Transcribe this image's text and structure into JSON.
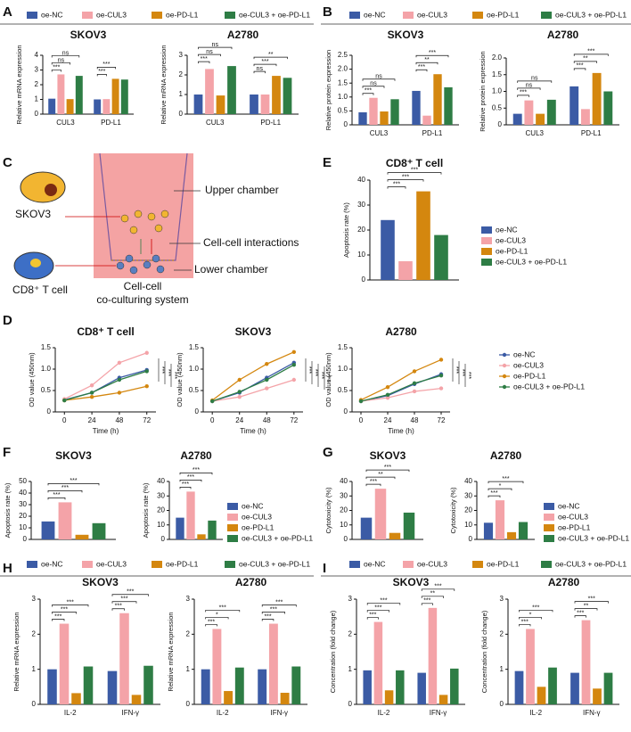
{
  "panel_labels": [
    "A",
    "B",
    "C",
    "D",
    "E",
    "F",
    "G",
    "H",
    "I"
  ],
  "diagram": {
    "labels": [
      "Upper chamber",
      "SKOV3",
      "Cell-cell interactions",
      "CD8⁺ T cell",
      "Lower chamber",
      "Cell-cell",
      "co-culturing system"
    ]
  },
  "chart_data": [
    {
      "type": "bar",
      "title": "SKOV3",
      "ylabel": "Relative mRNA expression",
      "categories": [
        "CUL3",
        "PD-L1"
      ],
      "ylim": [
        0,
        4
      ],
      "yticks": [
        0,
        1,
        2,
        3,
        4
      ],
      "series": [
        {
          "name": "oe-NC",
          "color": "#3b5ba5",
          "values": [
            1.05,
            1.0
          ]
        },
        {
          "name": "oe-CUL3",
          "color": "#f4a3a8",
          "values": [
            2.7,
            1.02
          ]
        },
        {
          "name": "oe-PD-L1",
          "color": "#d4870f",
          "values": [
            1.02,
            2.4
          ]
        },
        {
          "name": "oe-CUL3 + oe-PD-L1",
          "color": "#2e7d45",
          "values": [
            2.6,
            2.35
          ]
        }
      ],
      "significance": [
        [
          "***",
          "ns",
          "ns"
        ],
        [
          "***",
          "***"
        ]
      ]
    },
    {
      "type": "bar",
      "title": "A2780",
      "ylabel": "Relative mRNA expression",
      "categories": [
        "CUL3",
        "PD-L1"
      ],
      "ylim": [
        0,
        3
      ],
      "yticks": [
        0,
        1,
        2,
        3
      ],
      "series": [
        {
          "name": "oe-NC",
          "color": "#3b5ba5",
          "values": [
            1.0,
            1.0
          ]
        },
        {
          "name": "oe-CUL3",
          "color": "#f4a3a8",
          "values": [
            2.3,
            1.0
          ]
        },
        {
          "name": "oe-PD-L1",
          "color": "#d4870f",
          "values": [
            0.95,
            1.95
          ]
        },
        {
          "name": "oe-CUL3 + oe-PD-L1",
          "color": "#2e7d45",
          "values": [
            2.45,
            1.85
          ]
        }
      ],
      "significance": [
        [
          "***",
          "ns",
          "ns"
        ],
        [
          "ns",
          "***",
          "**"
        ]
      ]
    },
    {
      "type": "bar",
      "title": "SKOV3",
      "ylabel": "Relative protein expression",
      "categories": [
        "CUL3",
        "PD-L1"
      ],
      "ylim": [
        0,
        2.5
      ],
      "yticks": [
        0,
        0.5,
        {
          "value": 1,
          "label": "1.0"
        },
        1.5,
        {
          "value": 2,
          "label": "2.0"
        },
        2.5
      ],
      "series": [
        {
          "name": "oe-NC",
          "color": "#3b5ba5",
          "values": [
            0.45,
            1.22
          ]
        },
        {
          "name": "oe-CUL3",
          "color": "#f4a3a8",
          "values": [
            0.97,
            0.33
          ]
        },
        {
          "name": "oe-PD-L1",
          "color": "#d4870f",
          "values": [
            0.48,
            1.82
          ]
        },
        {
          "name": "oe-CUL3 + oe-PD-L1",
          "color": "#2e7d45",
          "values": [
            0.92,
            1.35
          ]
        }
      ],
      "significance": [
        [
          "***",
          "ns",
          "ns"
        ],
        [
          "***",
          "**",
          "***"
        ]
      ]
    },
    {
      "type": "bar",
      "title": "A2780",
      "ylabel": "Relative protein expression",
      "categories": [
        "CUL3",
        "PD-L1"
      ],
      "ylim": [
        0,
        2
      ],
      "yticks": [
        0,
        0.5,
        {
          "value": 1,
          "label": "1.0"
        },
        1.5,
        {
          "value": 2,
          "label": "2.0"
        }
      ],
      "series": [
        {
          "name": "oe-NC",
          "color": "#3b5ba5",
          "values": [
            0.33,
            1.15
          ]
        },
        {
          "name": "oe-CUL3",
          "color": "#f4a3a8",
          "values": [
            0.73,
            0.47
          ]
        },
        {
          "name": "oe-PD-L1",
          "color": "#d4870f",
          "values": [
            0.33,
            1.55
          ]
        },
        {
          "name": "oe-CUL3 + oe-PD-L1",
          "color": "#2e7d45",
          "values": [
            0.75,
            1.0
          ]
        }
      ],
      "significance": [
        [
          "***",
          "ns",
          "ns"
        ],
        [
          "***",
          "**",
          "***"
        ]
      ]
    },
    {
      "type": "bar",
      "title": "CD8⁺ T cell",
      "ylabel": "Apoptosis rate (%)",
      "categories": [
        null
      ],
      "ylim": [
        0,
        40
      ],
      "yticks": [
        0,
        10,
        20,
        30,
        40
      ],
      "series": [
        {
          "name": "oe-NC",
          "color": "#3b5ba5",
          "values": [
            24
          ]
        },
        {
          "name": "oe-CUL3",
          "color": "#f4a3a8",
          "values": [
            7.5
          ]
        },
        {
          "name": "oe-PD-L1",
          "color": "#d4870f",
          "values": [
            35.5
          ]
        },
        {
          "name": "oe-CUL3 + oe-PD-L1",
          "color": "#2e7d45",
          "values": [
            18
          ]
        }
      ],
      "significance": [
        [
          "***",
          "***",
          "***"
        ]
      ]
    },
    {
      "type": "line",
      "title": "CD8⁺ T cell",
      "ylabel": "OD value (450nm)",
      "xlabel": "Time (h)",
      "x": [
        0,
        24,
        48,
        72
      ],
      "xlim": [
        -8,
        80
      ],
      "xticks": [
        0,
        24,
        48,
        72
      ],
      "ylim": [
        0,
        1.5
      ],
      "yticks": [
        0,
        0.5,
        {
          "value": 1,
          "label": "1.0"
        },
        1.5
      ],
      "series": [
        {
          "name": "oe-NC",
          "color": "#3b5ba5",
          "values": [
            0.28,
            0.45,
            0.8,
            0.98
          ]
        },
        {
          "name": "oe-CUL3",
          "color": "#f4a3a8",
          "values": [
            0.3,
            0.62,
            1.15,
            1.38
          ]
        },
        {
          "name": "oe-PD-L1",
          "color": "#d4870f",
          "values": [
            0.27,
            0.35,
            0.45,
            0.6
          ]
        },
        {
          "name": "oe-CUL3 + oe-PD-L1",
          "color": "#2e7d45",
          "values": [
            0.27,
            0.45,
            0.75,
            0.95
          ]
        }
      ],
      "significance": [
        "***",
        "***",
        "***"
      ]
    },
    {
      "type": "line",
      "title": "SKOV3",
      "ylabel": "OD value (450nm)",
      "xlabel": "Time (h)",
      "x": [
        0,
        24,
        48,
        72
      ],
      "xlim": [
        -8,
        80
      ],
      "xticks": [
        0,
        24,
        48,
        72
      ],
      "ylim": [
        0,
        1.5
      ],
      "yticks": [
        0,
        0.5,
        {
          "value": 1,
          "label": "1.0"
        },
        1.5
      ],
      "series": [
        {
          "name": "oe-NC",
          "color": "#3b5ba5",
          "values": [
            0.25,
            0.45,
            0.8,
            1.15
          ]
        },
        {
          "name": "oe-CUL3",
          "color": "#f4a3a8",
          "values": [
            0.25,
            0.35,
            0.55,
            0.75
          ]
        },
        {
          "name": "oe-PD-L1",
          "color": "#d4870f",
          "values": [
            0.27,
            0.75,
            1.12,
            1.4
          ]
        },
        {
          "name": "oe-CUL3 + oe-PD-L1",
          "color": "#2e7d45",
          "values": [
            0.25,
            0.47,
            0.75,
            1.1
          ]
        }
      ],
      "significance": [
        "***",
        "***",
        "***",
        "***"
      ]
    },
    {
      "type": "line",
      "title": "A2780",
      "ylabel": "OD value (450nm)",
      "xlabel": "Time (h)",
      "x": [
        0,
        24,
        48,
        72
      ],
      "xlim": [
        -8,
        80
      ],
      "xticks": [
        0,
        24,
        48,
        72
      ],
      "ylim": [
        0,
        1.5
      ],
      "yticks": [
        0,
        0.5,
        {
          "value": 1,
          "label": "1.0"
        },
        1.5
      ],
      "series": [
        {
          "name": "oe-NC",
          "color": "#3b5ba5",
          "values": [
            0.25,
            0.38,
            0.65,
            0.88
          ]
        },
        {
          "name": "oe-CUL3",
          "color": "#f4a3a8",
          "values": [
            0.25,
            0.33,
            0.48,
            0.55
          ]
        },
        {
          "name": "oe-PD-L1",
          "color": "#d4870f",
          "values": [
            0.28,
            0.58,
            0.95,
            1.22
          ]
        },
        {
          "name": "oe-CUL3 + oe-PD-L1",
          "color": "#2e7d45",
          "values": [
            0.25,
            0.4,
            0.67,
            0.85
          ]
        }
      ],
      "significance": [
        "***",
        "***",
        "***"
      ]
    },
    {
      "type": "bar",
      "title": "SKOV3",
      "ylabel": "Apoptosis rate (%)",
      "categories": [
        null
      ],
      "ylim": [
        0,
        50
      ],
      "yticks": [
        0,
        10,
        20,
        30,
        40,
        50
      ],
      "series": [
        {
          "name": "oe-NC",
          "color": "#3b5ba5",
          "values": [
            15.5
          ]
        },
        {
          "name": "oe-CUL3",
          "color": "#f4a3a8",
          "values": [
            32
          ]
        },
        {
          "name": "oe-PD-L1",
          "color": "#d4870f",
          "values": [
            4
          ]
        },
        {
          "name": "oe-CUL3 + oe-PD-L1",
          "color": "#2e7d45",
          "values": [
            14
          ]
        }
      ],
      "significance": [
        [
          "***",
          "***",
          "***"
        ]
      ]
    },
    {
      "type": "bar",
      "title": "A2780",
      "ylabel": "Apoptosis rate (%)",
      "categories": [
        null
      ],
      "ylim": [
        0,
        40
      ],
      "yticks": [
        0,
        10,
        20,
        30,
        40
      ],
      "series": [
        {
          "name": "oe-NC",
          "color": "#3b5ba5",
          "values": [
            15
          ]
        },
        {
          "name": "oe-CUL3",
          "color": "#f4a3a8",
          "values": [
            33
          ]
        },
        {
          "name": "oe-PD-L1",
          "color": "#d4870f",
          "values": [
            3.5
          ]
        },
        {
          "name": "oe-CUL3 + oe-PD-L1",
          "color": "#2e7d45",
          "values": [
            13
          ]
        }
      ],
      "significance": [
        [
          "***",
          "***",
          "***"
        ]
      ]
    },
    {
      "type": "bar",
      "title": "SKOV3",
      "ylabel": "Cytotoxicity (%)",
      "categories": [
        null
      ],
      "ylim": [
        0,
        40
      ],
      "yticks": [
        0,
        10,
        20,
        30,
        40
      ],
      "series": [
        {
          "name": "oe-NC",
          "color": "#3b5ba5",
          "values": [
            15
          ]
        },
        {
          "name": "oe-CUL3",
          "color": "#f4a3a8",
          "values": [
            35
          ]
        },
        {
          "name": "oe-PD-L1",
          "color": "#d4870f",
          "values": [
            4.5
          ]
        },
        {
          "name": "oe-CUL3 + oe-PD-L1",
          "color": "#2e7d45",
          "values": [
            18.5
          ]
        }
      ],
      "significance": [
        [
          "***",
          "**",
          "***"
        ]
      ]
    },
    {
      "type": "bar",
      "title": "A2780",
      "ylabel": "Cytotoxicity (%)",
      "categories": [
        null
      ],
      "ylim": [
        0,
        40
      ],
      "yticks": [
        0,
        10,
        20,
        30,
        40
      ],
      "series": [
        {
          "name": "oe-NC",
          "color": "#3b5ba5",
          "values": [
            11.5
          ]
        },
        {
          "name": "oe-CUL3",
          "color": "#f4a3a8",
          "values": [
            27
          ]
        },
        {
          "name": "oe-PD-L1",
          "color": "#d4870f",
          "values": [
            5
          ]
        },
        {
          "name": "oe-CUL3 + oe-PD-L1",
          "color": "#2e7d45",
          "values": [
            12
          ]
        }
      ],
      "significance": [
        [
          "***",
          "*",
          "***"
        ]
      ]
    },
    {
      "type": "bar",
      "title": "SKOV3",
      "ylabel": "Relative mRNA expression",
      "categories": [
        "IL-2",
        "IFN-γ"
      ],
      "ylim": [
        0,
        3
      ],
      "yticks": [
        0,
        1,
        2,
        3
      ],
      "series": [
        {
          "name": "oe-NC",
          "color": "#3b5ba5",
          "values": [
            1.0,
            0.95
          ]
        },
        {
          "name": "oe-CUL3",
          "color": "#f4a3a8",
          "values": [
            2.3,
            2.6
          ]
        },
        {
          "name": "oe-PD-L1",
          "color": "#d4870f",
          "values": [
            0.32,
            0.27
          ]
        },
        {
          "name": "oe-CUL3 + oe-PD-L1",
          "color": "#2e7d45",
          "values": [
            1.08,
            1.1
          ]
        }
      ],
      "significance": [
        [
          "***",
          "***",
          "***"
        ],
        [
          "***",
          "***",
          "***"
        ]
      ]
    },
    {
      "type": "bar",
      "title": "A2780",
      "ylabel": "Relative mRNA expression",
      "categories": [
        "IL-2",
        "IFN-γ"
      ],
      "ylim": [
        0,
        3
      ],
      "yticks": [
        0,
        1,
        2,
        3
      ],
      "series": [
        {
          "name": "oe-NC",
          "color": "#3b5ba5",
          "values": [
            1.0,
            1.0
          ]
        },
        {
          "name": "oe-CUL3",
          "color": "#f4a3a8",
          "values": [
            2.15,
            2.3
          ]
        },
        {
          "name": "oe-PD-L1",
          "color": "#d4870f",
          "values": [
            0.38,
            0.33
          ]
        },
        {
          "name": "oe-CUL3 + oe-PD-L1",
          "color": "#2e7d45",
          "values": [
            1.05,
            1.08
          ]
        }
      ],
      "significance": [
        [
          "***",
          "*",
          "***"
        ],
        [
          "***",
          "***",
          "***"
        ]
      ]
    },
    {
      "type": "bar",
      "title": "SKOV3",
      "ylabel": "Concentration (fold change)",
      "categories": [
        "IL-2",
        "IFN-γ"
      ],
      "ylim": [
        0,
        3
      ],
      "yticks": [
        0,
        1,
        2,
        3
      ],
      "series": [
        {
          "name": "oe-NC",
          "color": "#3b5ba5",
          "values": [
            0.97,
            0.9
          ]
        },
        {
          "name": "oe-CUL3",
          "color": "#f4a3a8",
          "values": [
            2.35,
            2.75
          ]
        },
        {
          "name": "oe-PD-L1",
          "color": "#d4870f",
          "values": [
            0.4,
            0.27
          ]
        },
        {
          "name": "oe-CUL3 + oe-PD-L1",
          "color": "#2e7d45",
          "values": [
            0.97,
            1.02
          ]
        }
      ],
      "significance": [
        [
          "***",
          "***",
          "***"
        ],
        [
          "***",
          "**",
          "***"
        ]
      ]
    },
    {
      "type": "bar",
      "title": "A2780",
      "ylabel": "Concentration (fold change)",
      "categories": [
        "IL-2",
        "IFN-γ"
      ],
      "ylim": [
        0,
        3
      ],
      "yticks": [
        0,
        1,
        2,
        3
      ],
      "series": [
        {
          "name": "oe-NC",
          "color": "#3b5ba5",
          "values": [
            0.95,
            0.9
          ]
        },
        {
          "name": "oe-CUL3",
          "color": "#f4a3a8",
          "values": [
            2.15,
            2.4
          ]
        },
        {
          "name": "oe-PD-L1",
          "color": "#d4870f",
          "values": [
            0.5,
            0.45
          ]
        },
        {
          "name": "oe-CUL3 + oe-PD-L1",
          "color": "#2e7d45",
          "values": [
            1.05,
            0.9
          ]
        }
      ],
      "significance": [
        [
          "***",
          "*",
          "***"
        ],
        [
          "***",
          "**",
          "***"
        ]
      ]
    }
  ]
}
